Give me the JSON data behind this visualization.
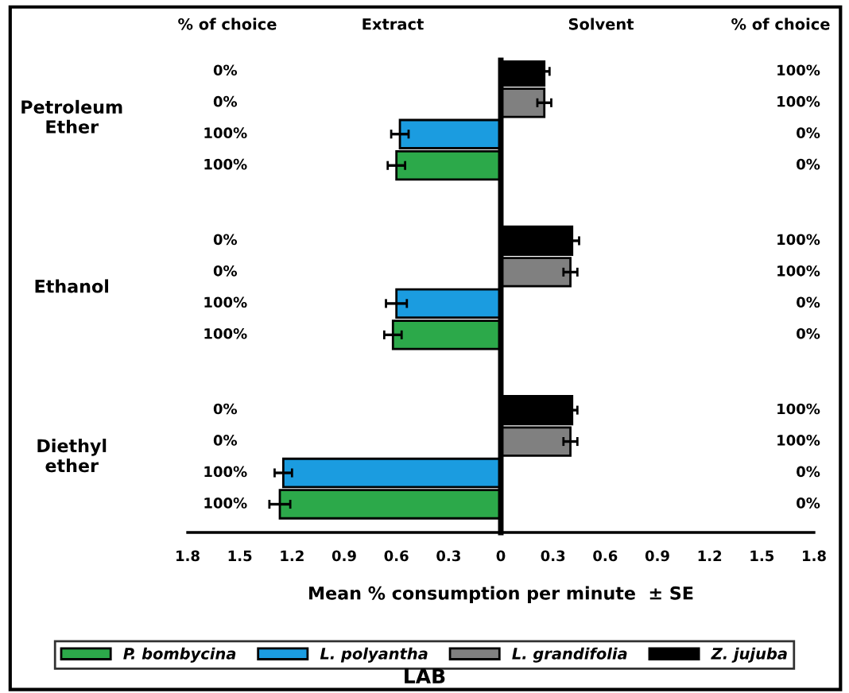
{
  "chart_data": {
    "type": "bar",
    "orientation": "horizontal",
    "title": "LAB",
    "xlabel": "Mean % consumption per minute  ± SE",
    "categories": [
      "Petroleum\nEther",
      "Ethanol",
      "Diethyl\nether"
    ],
    "series": [
      {
        "name": "P. bombycina",
        "color": "#2ca94a",
        "values": [
          -0.6,
          -0.62,
          -1.27
        ],
        "errors": [
          0.05,
          0.05,
          0.06
        ]
      },
      {
        "name": "L. polyantha",
        "color": "#1b9ce0",
        "values": [
          -0.58,
          -0.6,
          -1.25
        ],
        "errors": [
          0.05,
          0.06,
          0.05
        ]
      },
      {
        "name": "L. grandifolia",
        "color": "#808080",
        "values": [
          0.25,
          0.4,
          0.4
        ],
        "errors": [
          0.04,
          0.04,
          0.04
        ]
      },
      {
        "name": "Z. jujuba",
        "color": "#000000",
        "values": [
          0.25,
          0.41,
          0.41
        ],
        "errors": [
          0.03,
          0.04,
          0.03
        ]
      }
    ],
    "xlim": [
      -1.8,
      1.8
    ],
    "xticks": [
      {
        "value": -1.8,
        "label": "1.8"
      },
      {
        "value": -1.5,
        "label": "1.5"
      },
      {
        "value": -1.2,
        "label": "1.2"
      },
      {
        "value": -0.9,
        "label": "0.9"
      },
      {
        "value": -0.6,
        "label": "0.6"
      },
      {
        "value": -0.3,
        "label": "0.3"
      },
      0,
      0.3,
      0.6,
      0.9,
      1.2,
      1.5,
      1.8
    ],
    "legend": "bottom",
    "annotations": [
      "% of choice",
      "Extract",
      "Solvent",
      "% of choice",
      "0%",
      "100%",
      "0%",
      "100%",
      "100%",
      "0%",
      "100%",
      "0%",
      "0%",
      "100%",
      "0%",
      "100%",
      "100%",
      "0%",
      "100%",
      "0%",
      "0%",
      "100%",
      "0%",
      "100%",
      "100%",
      "0%",
      "100%",
      "0%"
    ]
  }
}
